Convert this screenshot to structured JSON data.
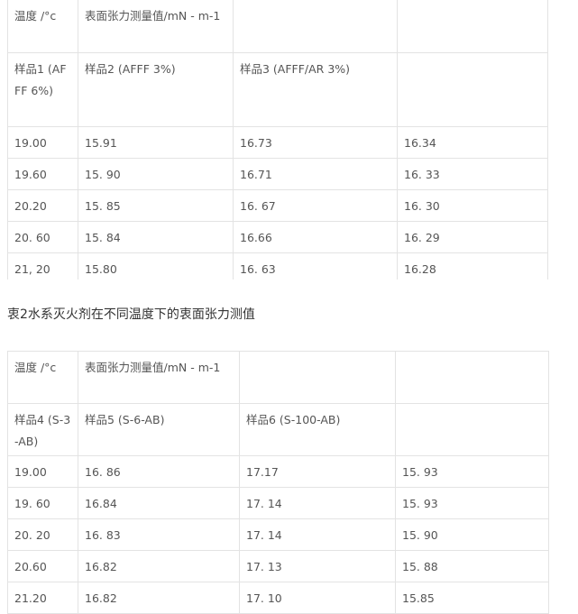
{
  "table1": {
    "header_row1": [
      "温度 /°c",
      "表面张力测量值/mN - m-1",
      "",
      ""
    ],
    "header_row2": [
      "样品1 (AFFF 6%)",
      "样品2 (AFFF 3%)",
      "样品3 (AFFF/AR 3%)",
      ""
    ],
    "rows": [
      [
        "19.00",
        "15.91",
        "16.73",
        "16.34"
      ],
      [
        "19.60",
        "15. 90",
        "16.71",
        "16. 33"
      ],
      [
        "20.20",
        "15. 85",
        "16. 67",
        "16. 30"
      ],
      [
        "20. 60",
        "15. 84",
        "16.66",
        "16. 29"
      ],
      [
        "21, 20",
        "15.80",
        "16. 63",
        "16.28"
      ]
    ]
  },
  "caption": "衷2水系灭火剂在不同温度下的衷面张力测值",
  "table2": {
    "header_row1": [
      "温度 /°c",
      "表面张力测量值/mN - m-1",
      "",
      ""
    ],
    "header_row2": [
      "样品4 (S-3-AB)",
      "样品5 (S-6-AB)",
      "样品6 (S-100-AB)",
      ""
    ],
    "rows": [
      [
        "19.00",
        "16. 86",
        "17.17",
        "15. 93"
      ],
      [
        "19. 60",
        "16.84",
        "17. 14",
        "15. 93"
      ],
      [
        "20. 20",
        "16. 83",
        "17. 14",
        "15. 90"
      ],
      [
        "20.60",
        "16.82",
        "17. 13",
        "15. 88"
      ],
      [
        "21.20",
        "16.82",
        "17. 10",
        "15.85"
      ]
    ]
  }
}
